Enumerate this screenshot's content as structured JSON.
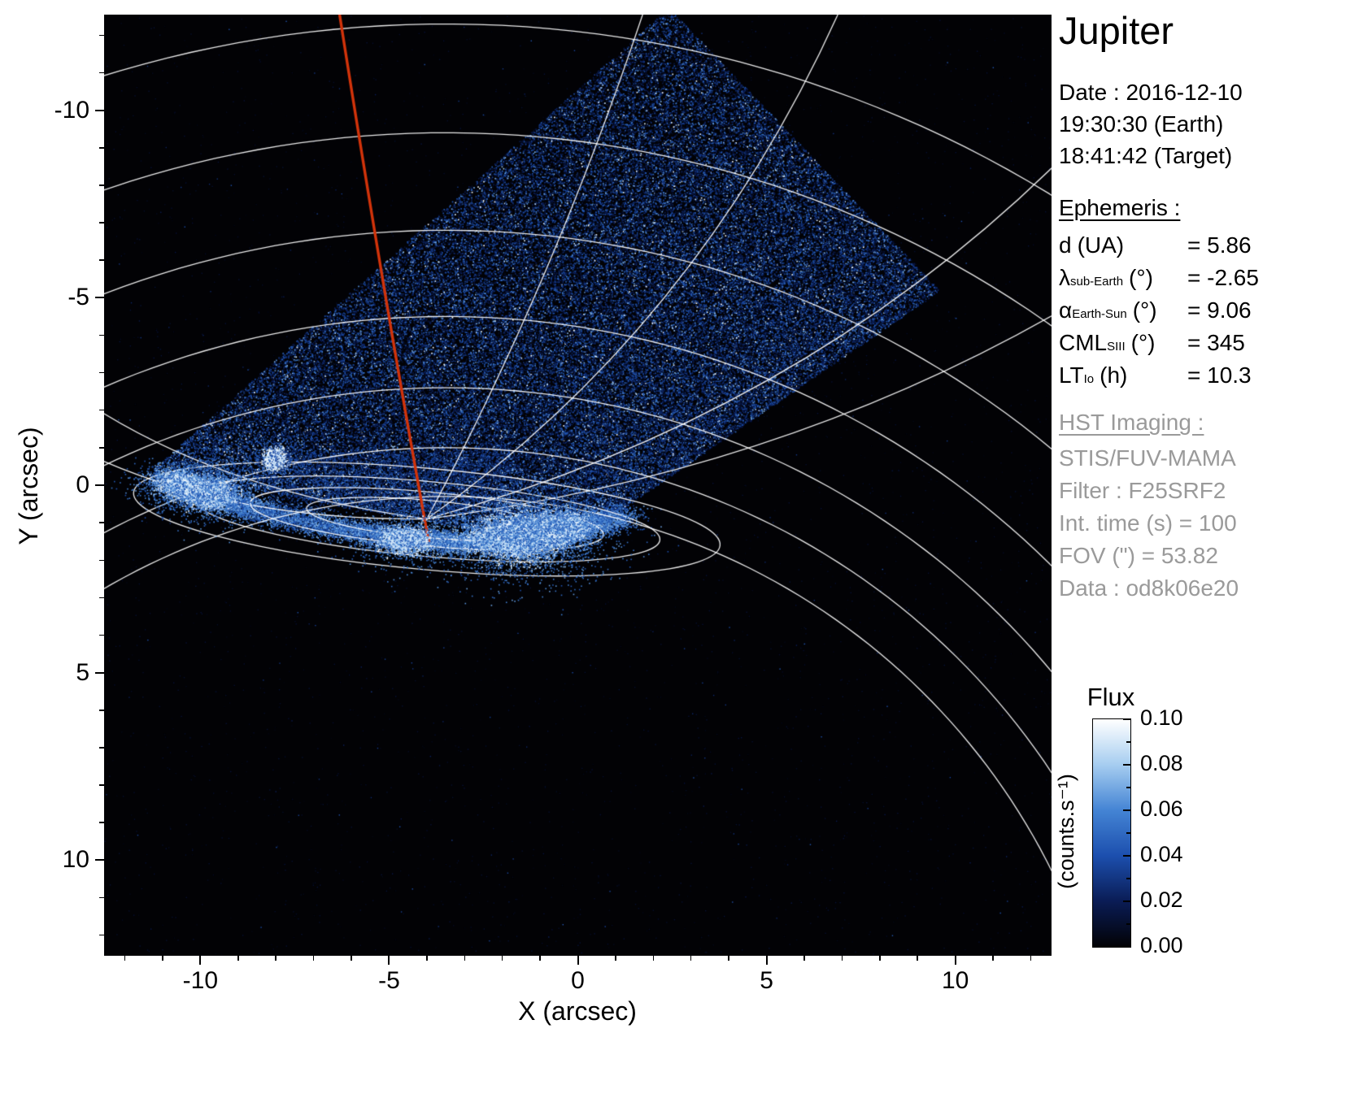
{
  "title": "Jupiter",
  "info_panel": {
    "date_line": "Date : 2016-12-10",
    "time_earth": "19:30:30 (Earth)",
    "time_target": "18:41:42 (Target)",
    "ephemeris_heading": "Ephemeris :",
    "ephemeris": [
      {
        "symbol": "d",
        "subscript": "",
        "unit": "(UA)",
        "value": "= 5.86"
      },
      {
        "symbol": "λ",
        "subscript": "sub-Earth",
        "unit": "(°)",
        "value": "= -2.65"
      },
      {
        "symbol": "α",
        "subscript": "Earth-Sun",
        "unit": "(°)",
        "value": "= 9.06"
      },
      {
        "symbol": "CML",
        "subscript": "SIII",
        "unit": "(°)",
        "value": "= 345"
      },
      {
        "symbol": "LT",
        "subscript": "Io",
        "unit": "(h)",
        "value": "= 10.3"
      }
    ],
    "hst_heading": "HST Imaging :",
    "hst": [
      "STIS/FUV-MAMA",
      "Filter : F25SRF2",
      "Int. time (s) = 100",
      "FOV (\") = 53.82",
      "Data : od8k06e20"
    ],
    "text_color_primary": "#000000",
    "text_color_secondary": "#9a9a9a"
  },
  "colorbar": {
    "title": "Flux",
    "unit": "(counts.s⁻¹)",
    "tick_labels": [
      "0.10",
      "0.08",
      "0.06",
      "0.04",
      "0.02",
      "0.00"
    ]
  },
  "chart_data": {
    "type": "heatmap",
    "title": "Jupiter",
    "xlabel": "X (arcsec)",
    "ylabel": "Y (arcsec)",
    "xlim": [
      -12.55,
      12.55
    ],
    "ylim": [
      -12.55,
      12.55
    ],
    "xticks": [
      -10,
      -5,
      0,
      5,
      10
    ],
    "yticks": [
      -10,
      -5,
      0,
      5,
      10
    ],
    "xtick_labels": [
      "-10",
      "-5",
      "0",
      "5",
      "10"
    ],
    "ytick_labels": [
      "10",
      "5",
      "0",
      "-5",
      "-10"
    ],
    "flux_range": [
      0.0,
      0.1
    ],
    "flux_ticks": [
      0.0,
      0.02,
      0.04,
      0.06,
      0.08,
      0.1
    ],
    "background_color": "#020205",
    "colormap_stops": [
      "#020205",
      "#0a1c55",
      "#1c4fae",
      "#4484d4",
      "#a6cdf0",
      "#ffffff"
    ],
    "detector_fov_polygon": [
      [
        2.4,
        12.75
      ],
      [
        9.6,
        5.2
      ],
      [
        -0.3,
        -1.65
      ],
      [
        -11.3,
        0.4
      ]
    ],
    "aurora": {
      "arc_points": [
        [
          -11.0,
          0.25
        ],
        [
          -9.9,
          -0.15
        ],
        [
          -8.9,
          -0.55
        ],
        [
          -7.8,
          -0.85
        ],
        [
          -6.6,
          -1.1
        ],
        [
          -5.4,
          -1.3
        ],
        [
          -4.2,
          -1.45
        ],
        [
          -3.0,
          -1.52
        ],
        [
          -1.8,
          -1.45
        ],
        [
          -0.7,
          -1.28
        ],
        [
          0.4,
          -1.02
        ],
        [
          1.2,
          -0.78
        ]
      ],
      "arc_weights": [
        0.55,
        0.95,
        0.6,
        0.45,
        0.5,
        0.65,
        0.75,
        0.9,
        1.0,
        1.0,
        0.75,
        0.4
      ],
      "hotspots": [
        {
          "x": -9.85,
          "y": -0.2,
          "sigma": 0.32,
          "n": 2600
        },
        {
          "x": -1.55,
          "y": -1.35,
          "sigma": 0.5,
          "n": 5200
        },
        {
          "x": -0.45,
          "y": -1.1,
          "sigma": 0.3,
          "n": 2400
        },
        {
          "x": -4.6,
          "y": -1.45,
          "sigma": 0.3,
          "n": 1500
        },
        {
          "x": -10.6,
          "y": 0.05,
          "sigma": 0.25,
          "n": 1200
        }
      ],
      "diffuse_patch": {
        "x_range": [
          -8.2,
          -1.8
        ],
        "y_range": [
          -0.7,
          0.9
        ],
        "n": 2800
      },
      "io_spot": {
        "x": -8.05,
        "y": 0.72,
        "sigma": 0.13,
        "n": 900
      }
    },
    "footprint_track": {
      "color": "#d2330a",
      "start": [
        -6.35,
        12.8
      ],
      "control": [
        -5.1,
        4.8
      ],
      "end": [
        -3.95,
        -1.5
      ]
    },
    "graticule": {
      "color": "#ffffff",
      "arc_center": [
        -3.5,
        -18.2
      ],
      "arc_radii": [
        30.5,
        27.6,
        25.0,
        22.7,
        20.8,
        19.2,
        17.9
      ],
      "pole": [
        -4.0,
        -0.9
      ],
      "pole_ellipses": [
        [
          7.8,
          1.35
        ],
        [
          6.2,
          1.0
        ],
        [
          4.7,
          0.72
        ],
        [
          3.2,
          0.5
        ]
      ],
      "pole_ellipse_rotation_rad": 0.09,
      "meridians": [
        {
          "end": [
            1.8,
            12.8
          ],
          "ctrl": [
            -0.6,
            5.5
          ]
        },
        {
          "end": [
            7.0,
            12.8
          ],
          "ctrl": [
            3.2,
            4.2
          ]
        },
        {
          "end": [
            12.7,
            8.6
          ],
          "ctrl": [
            5.8,
            1.8
          ]
        },
        {
          "end": [
            12.7,
            4.6
          ],
          "ctrl": [
            5.2,
            0.3
          ]
        },
        {
          "end": [
            -12.7,
            2.0
          ],
          "ctrl": [
            -9.2,
            -0.2
          ]
        },
        {
          "end": [
            -12.7,
            0.7
          ],
          "ctrl": [
            -9.0,
            -0.95
          ]
        }
      ]
    }
  }
}
